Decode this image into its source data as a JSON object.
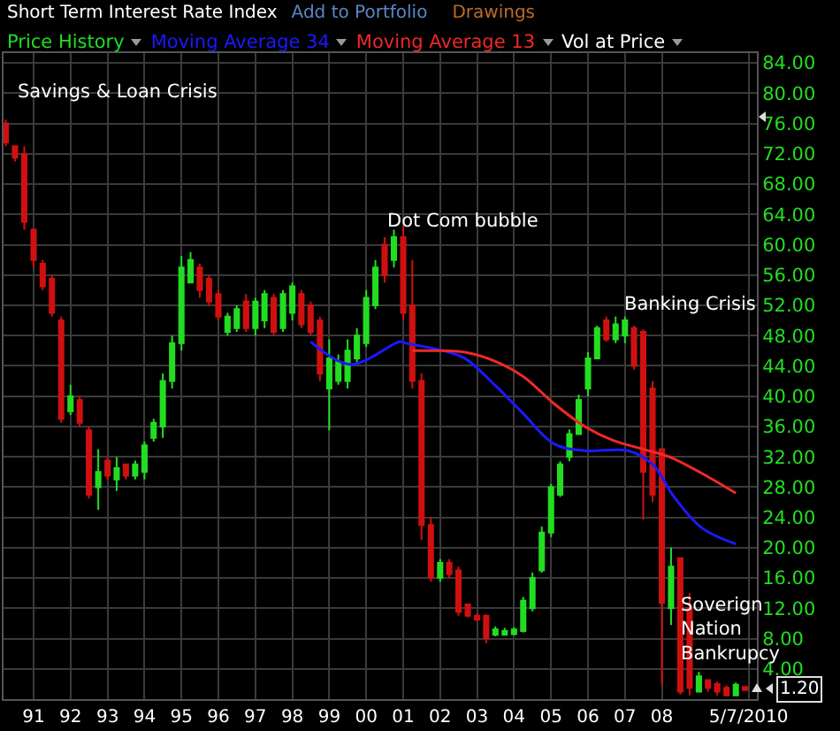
{
  "chart_data": {
    "type": "candlestick",
    "title": "Short Term Interest Rate Index",
    "annotations": [
      "Add to Portfolio",
      "Drawings",
      "Vol at Price",
      "Savings & Loan Crisis",
      "Dot Com bubble",
      "Banking Crisis",
      "Soverign\nNation\nBankrupcy",
      {
        "text": "1.20",
        "x": "2010-04",
        "y": 1.2
      }
    ],
    "series": [
      {
        "name": "Price History",
        "colors": [
          "#d01010",
          "#d01010",
          "#d01010",
          "#d01010",
          "#d01010",
          "#d01010",
          "#d01010",
          "#22dd22",
          "#d01010",
          "#d01010",
          "#22dd22",
          "#d01010",
          "#22dd22",
          "#d01010",
          "#22dd22",
          "#22dd22",
          "#22dd22",
          "#22dd22",
          "#22dd22",
          "#22dd22",
          "#22dd22",
          "#d01010",
          "#d01010",
          "#d01010",
          "#22dd22",
          "#22dd22",
          "#d01010",
          "#22dd22",
          "#22dd22",
          "#d01010",
          "#22dd22",
          "#22dd22",
          "#d01010",
          "#d01010",
          "#d01010",
          "#22dd22",
          "#22dd22",
          "#22dd22",
          "#22dd22",
          "#22dd22",
          "#22dd22",
          "#d01010",
          "#22dd22",
          "#d01010",
          "#d01010",
          "#d01010",
          "#d01010",
          "#22dd22",
          "#d01010",
          "#d01010",
          "#d01010",
          "#d01010",
          "#d01010",
          "#22dd22",
          "#22dd22",
          "#22dd22",
          "#22dd22",
          "#22dd22",
          "#22dd22",
          "#22dd22",
          "#22dd22",
          "#22dd22",
          "#22dd22",
          "#22dd22",
          "#22dd22",
          "#d01010",
          "#22dd22",
          "#22dd22",
          "#d01010",
          "#d01010",
          "#d01010",
          "#d01010",
          "#22dd22",
          "#d01010",
          "#d01010",
          "#22dd22",
          "#d01010",
          "#d01010",
          "#d01010",
          "#22dd22",
          "#d01010"
        ],
        "x": [
          "1990-04",
          "1990-07",
          "1990-10",
          "1991-01",
          "1991-04",
          "1991-07",
          "1991-10",
          "1992-01",
          "1992-04",
          "1992-07",
          "1992-10",
          "1993-01",
          "1993-04",
          "1993-07",
          "1993-10",
          "1994-01",
          "1994-04",
          "1994-07",
          "1994-10",
          "1995-01",
          "1995-04",
          "1995-07",
          "1995-10",
          "1996-01",
          "1996-04",
          "1996-07",
          "1996-10",
          "1997-01",
          "1997-04",
          "1997-07",
          "1997-10",
          "1998-01",
          "1998-04",
          "1998-07",
          "1998-10",
          "1999-01",
          "1999-04",
          "1999-07",
          "1999-10",
          "2000-01",
          "2000-04",
          "2000-07",
          "2000-10",
          "2001-01",
          "2001-04",
          "2001-07",
          "2001-10",
          "2002-01",
          "2002-04",
          "2002-07",
          "2002-10",
          "2003-01",
          "2003-04",
          "2003-07",
          "2003-10",
          "2004-01",
          "2004-04",
          "2004-07",
          "2004-10",
          "2005-01",
          "2005-04",
          "2005-07",
          "2005-10",
          "2006-01",
          "2006-04",
          "2006-07",
          "2006-10",
          "2007-01",
          "2007-04",
          "2007-07",
          "2007-10",
          "2008-01",
          "2008-04",
          "2008-07",
          "2008-10",
          "2009-01",
          "2009-04",
          "2009-07",
          "2009-10",
          "2010-01",
          "2010-04"
        ],
        "ohlc": [
          [
            76,
            76.5,
            73,
            73.5
          ],
          [
            73,
            73,
            71,
            71.5
          ],
          [
            72,
            73,
            62,
            63
          ],
          [
            62,
            62,
            57,
            58
          ],
          [
            57.5,
            58,
            54,
            54.5
          ],
          [
            55.5,
            56,
            50.5,
            51
          ],
          [
            50,
            50.5,
            36.5,
            37
          ],
          [
            38,
            41.5,
            37.5,
            40
          ],
          [
            39.5,
            40,
            36,
            36.5
          ],
          [
            35.5,
            36,
            26.5,
            27
          ],
          [
            28,
            33,
            25,
            30
          ],
          [
            31.5,
            32,
            29,
            29.5
          ],
          [
            29,
            32,
            27.5,
            30.5
          ],
          [
            31,
            31,
            29,
            29.5
          ],
          [
            29.5,
            31.5,
            29,
            31
          ],
          [
            30,
            34,
            29,
            33.5
          ],
          [
            34.5,
            37,
            34,
            36.5
          ],
          [
            36,
            43,
            34.5,
            42
          ],
          [
            42,
            48,
            41,
            47
          ],
          [
            47,
            58.5,
            46,
            57
          ],
          [
            55,
            59,
            55,
            58
          ],
          [
            57,
            57.5,
            53,
            54
          ],
          [
            55.5,
            56,
            52,
            52.5
          ],
          [
            53.5,
            54,
            50,
            50.5
          ],
          [
            48.5,
            51,
            48,
            50.5
          ],
          [
            49,
            52,
            48.5,
            51.5
          ],
          [
            52.5,
            53.5,
            48.5,
            49
          ],
          [
            49,
            53,
            48,
            52.5
          ],
          [
            50,
            54,
            49,
            53.5
          ],
          [
            53,
            53.5,
            48,
            48.5
          ],
          [
            49,
            54,
            48.5,
            53.5
          ],
          [
            51,
            55,
            50,
            54.5
          ],
          [
            53.5,
            54,
            49,
            49.5
          ],
          [
            52,
            52.5,
            48,
            48.5
          ],
          [
            50,
            50.5,
            42,
            43
          ],
          [
            41,
            47.5,
            35.5,
            45
          ],
          [
            42,
            45.5,
            41.5,
            44.5
          ],
          [
            42,
            47.5,
            41,
            46
          ],
          [
            45,
            49,
            44.5,
            48
          ],
          [
            47,
            54,
            46.5,
            53
          ],
          [
            52,
            58,
            51.5,
            57
          ],
          [
            60,
            61,
            55,
            56
          ],
          [
            58,
            62,
            57,
            61
          ],
          [
            61,
            62.5,
            50,
            51
          ],
          [
            52,
            58,
            41,
            42
          ],
          [
            42,
            43,
            21,
            23
          ],
          [
            23,
            24,
            15.5,
            16
          ],
          [
            16,
            18.5,
            15.5,
            18
          ],
          [
            18,
            18.5,
            16,
            16.5
          ],
          [
            17,
            17.5,
            11,
            11.5
          ],
          [
            12.5,
            12.5,
            10.8,
            11
          ],
          [
            11,
            11.3,
            10.3,
            10.5
          ],
          [
            11,
            11.2,
            7.4,
            8
          ],
          [
            8.5,
            9.6,
            8.3,
            9.2
          ],
          [
            8.5,
            9.4,
            8.4,
            9
          ],
          [
            8.6,
            9.5,
            8.4,
            9.2
          ],
          [
            9,
            13.5,
            8.8,
            13
          ],
          [
            12,
            16.7,
            11.6,
            16
          ],
          [
            17,
            22.8,
            16.7,
            22
          ],
          [
            22,
            28.4,
            21.4,
            28
          ],
          [
            27,
            31.4,
            26.7,
            31
          ],
          [
            32,
            35.6,
            31.4,
            35
          ],
          [
            35,
            40.2,
            34.9,
            39.5
          ],
          [
            41,
            45.8,
            40,
            45
          ],
          [
            45,
            49.3,
            44.9,
            49
          ],
          [
            50,
            50.5,
            47.2,
            47.5
          ],
          [
            47.5,
            50.5,
            47,
            49.5
          ],
          [
            48,
            50.5,
            47,
            50
          ],
          [
            49,
            49.3,
            43.5,
            44
          ],
          [
            48.5,
            48.8,
            23.7,
            30
          ],
          [
            41,
            42,
            26,
            27
          ],
          [
            33,
            33,
            1.9,
            12.7
          ],
          [
            12,
            20,
            9.8,
            17.5
          ],
          [
            18.6,
            18.6,
            0.6,
            1
          ],
          [
            12,
            14,
            0.5,
            1.5
          ],
          [
            1,
            3.6,
            0.9,
            3
          ],
          [
            2.5,
            2.6,
            1,
            1.5
          ],
          [
            2,
            2.3,
            0.5,
            1
          ],
          [
            1.5,
            1.8,
            0.4,
            0.5
          ],
          [
            0.5,
            2.2,
            0.4,
            1.9
          ],
          [
            1.6,
            1.6,
            1.1,
            1.2
          ]
        ]
      },
      {
        "name": "Moving Average 34",
        "type": "line",
        "color": "#1a1aff",
        "x": [
          "1998-07",
          "1999-08",
          "2000-12",
          "2001-02",
          "2002-02",
          "2002-09",
          "2003-07",
          "2004-04",
          "2005-02",
          "2005-12",
          "2007-02",
          "2007-10",
          "2008-05",
          "2009-02",
          "2010-01"
        ],
        "values": [
          47.2,
          44.2,
          47.2,
          47,
          46,
          45,
          41.4,
          37.7,
          33.7,
          32.8,
          32.8,
          31,
          26.7,
          22.6,
          20.5
        ]
      },
      {
        "name": "Moving Average 13",
        "type": "line",
        "color": "#f02828",
        "x": [
          "2001-04",
          "2002-02",
          "2002-09",
          "2003-07",
          "2004-04",
          "2005-02",
          "2005-12",
          "2006-09",
          "2007-07",
          "2008-04",
          "2009-02",
          "2010-01"
        ],
        "values": [
          46,
          46,
          45.8,
          44.6,
          42.6,
          39,
          36,
          34.2,
          33,
          31.9,
          29.8,
          27.2
        ]
      }
    ],
    "xlim": [
      "1990-03-10",
      "2010-07-28"
    ],
    "xticks": [
      {
        "value": "1991-01-01",
        "label": "91"
      },
      {
        "value": "1992-01-01",
        "label": "92"
      },
      {
        "value": "1993-01-01",
        "label": "93"
      },
      {
        "value": "1994-01-01",
        "label": "94"
      },
      {
        "value": "1995-01-01",
        "label": "95"
      },
      {
        "value": "1996-01-01",
        "label": "96"
      },
      {
        "value": "1997-01-01",
        "label": "97"
      },
      {
        "value": "1998-01-01",
        "label": "98"
      },
      {
        "value": "1999-01-01",
        "label": "99"
      },
      {
        "value": "2000-01-01",
        "label": "00"
      },
      {
        "value": "2001-01-01",
        "label": "01"
      },
      {
        "value": "2002-01-01",
        "label": "02"
      },
      {
        "value": "2003-01-01",
        "label": "03"
      },
      {
        "value": "2004-01-01",
        "label": "04"
      },
      {
        "value": "2005-01-01",
        "label": "05"
      },
      {
        "value": "2006-01-01",
        "label": "06"
      },
      {
        "value": "2007-01-01",
        "label": "07"
      },
      {
        "value": "2008-01-01",
        "label": "08"
      },
      {
        "value": "2010-05-07",
        "label": "5/7/2010"
      }
    ],
    "ylim": [
      0,
      85.3
    ],
    "yticks": [
      {
        "value": 4,
        "label": "4.00"
      },
      {
        "value": 8,
        "label": "8.00"
      },
      {
        "value": 12,
        "label": "12.00"
      },
      {
        "value": 16,
        "label": "16.00"
      },
      {
        "value": 20,
        "label": "20.00"
      },
      {
        "value": 24,
        "label": "24.00"
      },
      {
        "value": 28,
        "label": "28.00"
      },
      {
        "value": 32,
        "label": "32.00"
      },
      {
        "value": 36,
        "label": "36.00"
      },
      {
        "value": 40,
        "label": "40.00"
      },
      {
        "value": 44,
        "label": "44.00"
      },
      {
        "value": 48,
        "label": "48.00"
      },
      {
        "value": 52,
        "label": "52.00"
      },
      {
        "value": 56,
        "label": "56.00"
      },
      {
        "value": 60,
        "label": "60.00"
      },
      {
        "value": 64,
        "label": "64.00"
      },
      {
        "value": 68,
        "label": "68.00"
      },
      {
        "value": 72,
        "label": "72.00"
      },
      {
        "value": 76,
        "label": "76.00"
      },
      {
        "value": 80,
        "label": "80.00"
      },
      {
        "value": 84,
        "label": "84.00"
      }
    ],
    "grid": true,
    "legend": "top left",
    "line_style": "solid",
    "marker": "none"
  }
}
